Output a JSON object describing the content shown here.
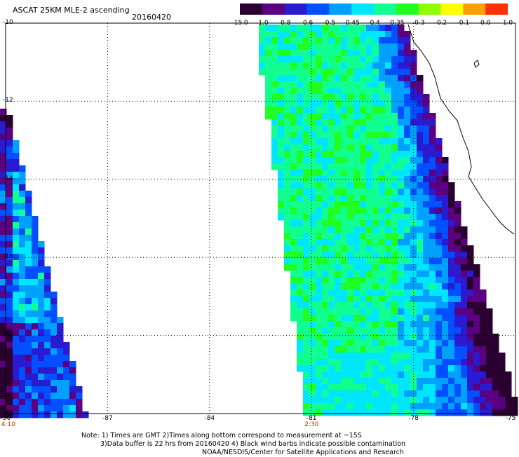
{
  "header": {
    "title": "ASCAT 25KM MLE-2 ascending",
    "date": "20160420"
  },
  "colorbar": {
    "labels": [
      "-15.0",
      "-1.0",
      "-0.8",
      "-0.6",
      "-0.5",
      "-0.45",
      "-0.4",
      "-0.35",
      "-0.3",
      "-0.2",
      "-0.1",
      "0.0",
      "1.0"
    ],
    "colors": [
      "#2a0030",
      "#5a0080",
      "#2a1ad0",
      "#0050ff",
      "#00a0ff",
      "#00e6ff",
      "#10ff90",
      "#20ff20",
      "#8cff00",
      "#ffff00",
      "#ffa000",
      "#ff3000"
    ]
  },
  "map": {
    "lat_labels": [
      "-10",
      "-12",
      "-14",
      "-16",
      "-18",
      "-20"
    ],
    "lon_labels": [
      "-90",
      "-87",
      "-84",
      "-81",
      "-78",
      "-75"
    ],
    "time_labels": [
      {
        "text": "4:10",
        "lon": "-90"
      },
      {
        "text": "2:30",
        "lon": "-81"
      }
    ],
    "lat_range": [
      -10,
      -20
    ],
    "lon_range": [
      -90,
      -75
    ]
  },
  "notes": {
    "line1": "Note: 1) Times are GMT 2)Times along bottom correspond to measurement at ~15S",
    "line2": "3)Data buffer is 22 hrs from 20160420 4) Black wind barbs indicate possible contamination",
    "line3": "NOAA/NESDIS/Center for Satellite Applications and Research"
  }
}
